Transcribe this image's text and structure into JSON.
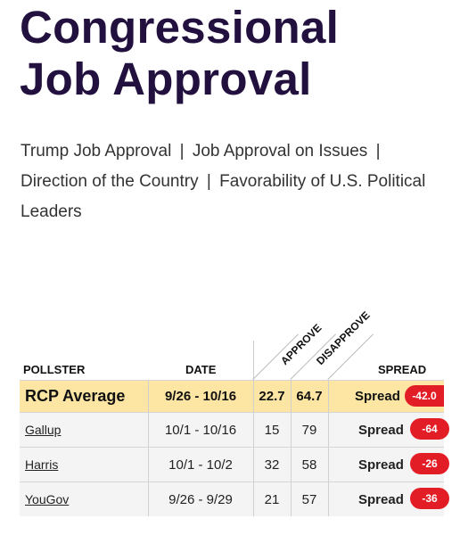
{
  "page": {
    "title_line1": "Congressional",
    "title_line2": "Job Approval"
  },
  "links": [
    {
      "label": "Trump Job Approval"
    },
    {
      "label": "Job Approval on Issues"
    },
    {
      "label": "Direction of the Country"
    },
    {
      "label": "Favorability of U.S. Political Leaders"
    }
  ],
  "separator": "|",
  "table": {
    "headers": {
      "pollster": "POLLSTER",
      "date": "DATE",
      "approve": "APPROVE",
      "disapprove": "DISAPPROVE",
      "spread": "SPREAD"
    },
    "average": {
      "pollster": "RCP Average",
      "date": "9/26 - 10/16",
      "approve": "22.7",
      "disapprove": "64.7",
      "spread_label": "Spread",
      "spread_value": "-42.0"
    },
    "rows": [
      {
        "pollster": "Gallup",
        "date": "10/1 - 10/16",
        "approve": "15",
        "disapprove": "79",
        "spread_label": "Spread",
        "spread_value": "-64"
      },
      {
        "pollster": "Harris",
        "date": "10/1 - 10/2",
        "approve": "32",
        "disapprove": "58",
        "spread_label": "Spread",
        "spread_value": "-26"
      },
      {
        "pollster": "YouGov",
        "date": "9/26 - 9/29",
        "approve": "21",
        "disapprove": "57",
        "spread_label": "Spread",
        "spread_value": "-36"
      }
    ]
  },
  "colors": {
    "title": "#22103e",
    "average_row": "#fde6a3",
    "spread_badge": "#e31d25"
  }
}
